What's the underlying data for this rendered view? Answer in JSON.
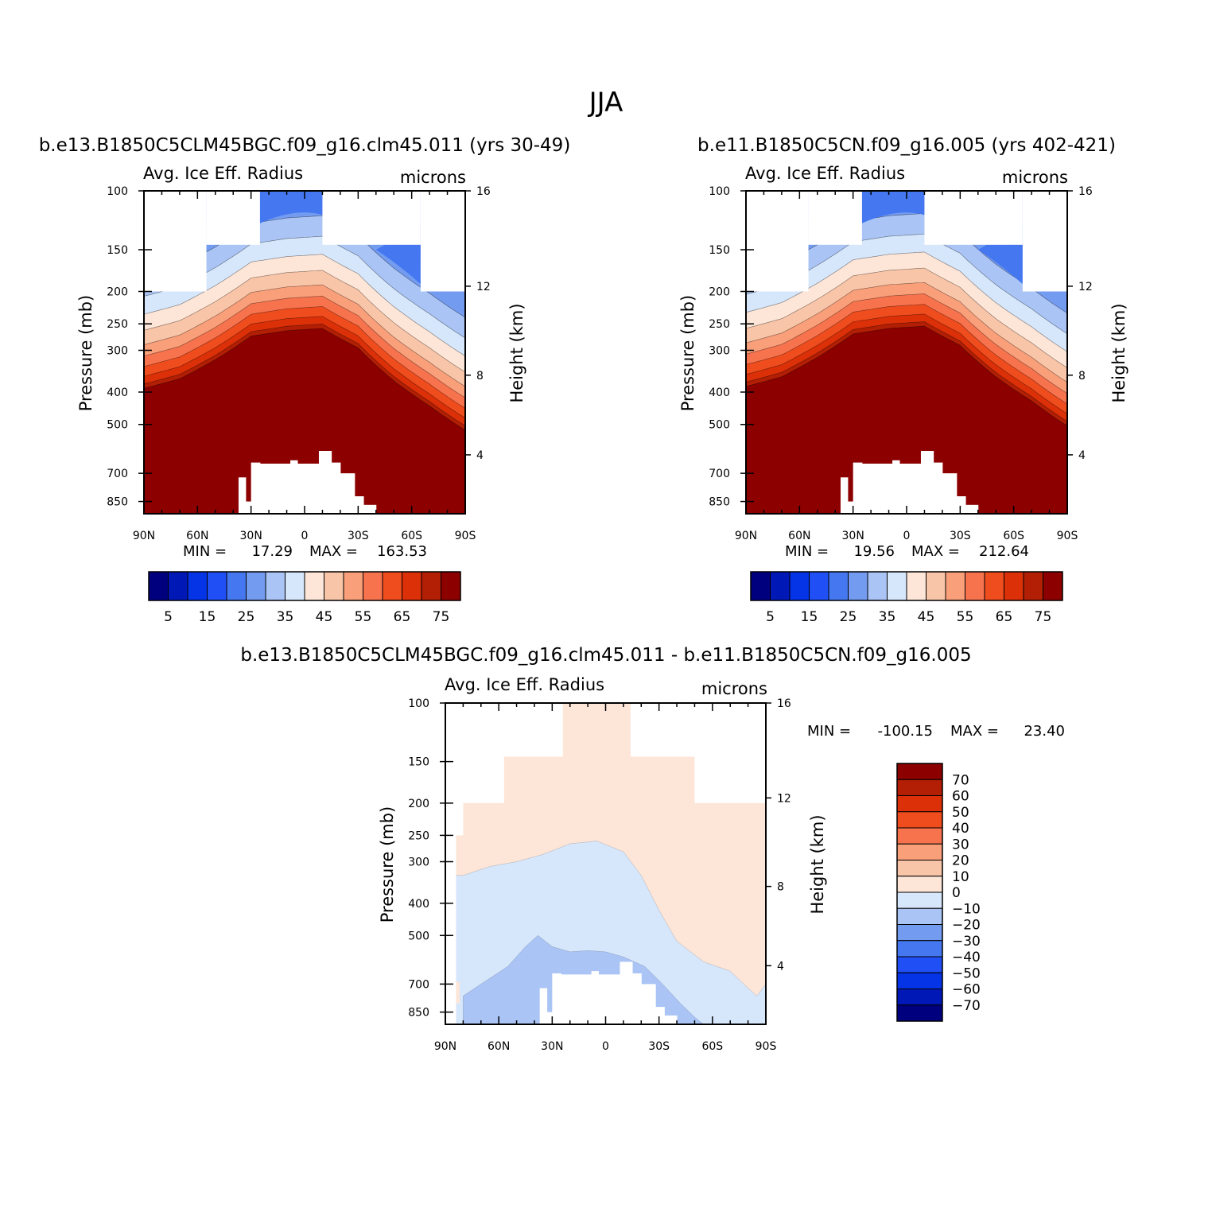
{
  "figure_title": "JJA",
  "chart_data": [
    {
      "type": "heatmap",
      "case": "b.e13.B1850C5CLM45BGC.f09_g16.clm45.011 (yrs 30-49)",
      "variable": "Avg. Ice Eff. Radius",
      "units": "microns",
      "ylabel": "Pressure (mb)",
      "ylabel_right": "Height (km)",
      "x_ticks": [
        "90N",
        "60N",
        "30N",
        "0",
        "30S",
        "60S",
        "90S"
      ],
      "x_range": [
        90,
        -90
      ],
      "y_ticks": [
        100,
        150,
        200,
        250,
        300,
        400,
        500,
        700,
        850
      ],
      "y_range": [
        100,
        925
      ],
      "y_scale": "log",
      "height_ticks": [
        16,
        12,
        8,
        4
      ],
      "min": "17.29",
      "max": "163.53",
      "min_label": "MIN =",
      "max_label": "MAX =",
      "levels": [
        5,
        10,
        15,
        20,
        25,
        30,
        35,
        40,
        45,
        50,
        55,
        60,
        65,
        70,
        75
      ],
      "colorbar_labels": [
        "5",
        "15",
        "25",
        "35",
        "45",
        "55",
        "65",
        "75"
      ],
      "profile": {
        "lat": [
          90,
          70,
          50,
          30,
          10,
          -10,
          -30,
          -50,
          -70,
          -90
        ],
        "p_level80": [
          390,
          365,
          320,
          272,
          262,
          258,
          295,
          370,
          440,
          520
        ]
      }
    },
    {
      "type": "heatmap",
      "case": "b.e11.B1850C5CN.f09_g16.005 (yrs 402-421)",
      "variable": "Avg. Ice Eff. Radius",
      "units": "microns",
      "ylabel": "Pressure (mb)",
      "ylabel_right": "Height (km)",
      "x_ticks": [
        "90N",
        "60N",
        "30N",
        "0",
        "30S",
        "60S",
        "90S"
      ],
      "x_range": [
        90,
        -90
      ],
      "y_ticks": [
        100,
        150,
        200,
        250,
        300,
        400,
        500,
        700,
        850
      ],
      "y_range": [
        100,
        925
      ],
      "y_scale": "log",
      "height_ticks": [
        16,
        12,
        8,
        4
      ],
      "min": "19.56",
      "max": "212.64",
      "min_label": "MIN =",
      "max_label": "MAX =",
      "levels": [
        5,
        10,
        15,
        20,
        25,
        30,
        35,
        40,
        45,
        50,
        55,
        60,
        65,
        70,
        75
      ],
      "colorbar_labels": [
        "5",
        "15",
        "25",
        "35",
        "45",
        "55",
        "65",
        "75"
      ],
      "profile": {
        "lat": [
          90,
          70,
          50,
          30,
          10,
          -10,
          -30,
          -50,
          -70,
          -90
        ],
        "p_level80": [
          385,
          360,
          315,
          268,
          258,
          254,
          290,
          360,
          425,
          505
        ]
      }
    },
    {
      "type": "heatmap",
      "case": "b.e13.B1850C5CLM45BGC.f09_g16.clm45.011 - b.e11.B1850C5CN.f09_g16.005",
      "variable": "Avg. Ice Eff. Radius",
      "units": "microns",
      "ylabel": "Pressure (mb)",
      "ylabel_right": "Height (km)",
      "x_ticks": [
        "90N",
        "60N",
        "30N",
        "0",
        "30S",
        "60S",
        "90S"
      ],
      "x_range": [
        90,
        -90
      ],
      "y_ticks": [
        100,
        150,
        200,
        250,
        300,
        400,
        500,
        700,
        850
      ],
      "y_range": [
        100,
        925
      ],
      "y_scale": "log",
      "height_ticks": [
        16,
        12,
        8,
        4
      ],
      "min": "-100.15",
      "max": "23.40",
      "min_label": "MIN =",
      "max_label": "MAX =",
      "levels": [
        -70,
        -60,
        -50,
        -40,
        -30,
        -20,
        -10,
        0,
        10,
        20,
        30,
        40,
        50,
        60,
        70
      ],
      "colorbar_labels": [
        "70",
        "60",
        "50",
        "40",
        "30",
        "20",
        "10",
        "0",
        "−10",
        "−20",
        "−30",
        "−40",
        "−50",
        "−60",
        "−70"
      ]
    }
  ],
  "palette": [
    "#00007f",
    "#0018b5",
    "#0533e6",
    "#1f4ff5",
    "#4578f0",
    "#739bf0",
    "#a9c4f5",
    "#d6e6fb",
    "#fde6d8",
    "#f9c5a8",
    "#f99f7a",
    "#f7734e",
    "#f04d1e",
    "#dc3008",
    "#b21f04",
    "#8c0000"
  ]
}
